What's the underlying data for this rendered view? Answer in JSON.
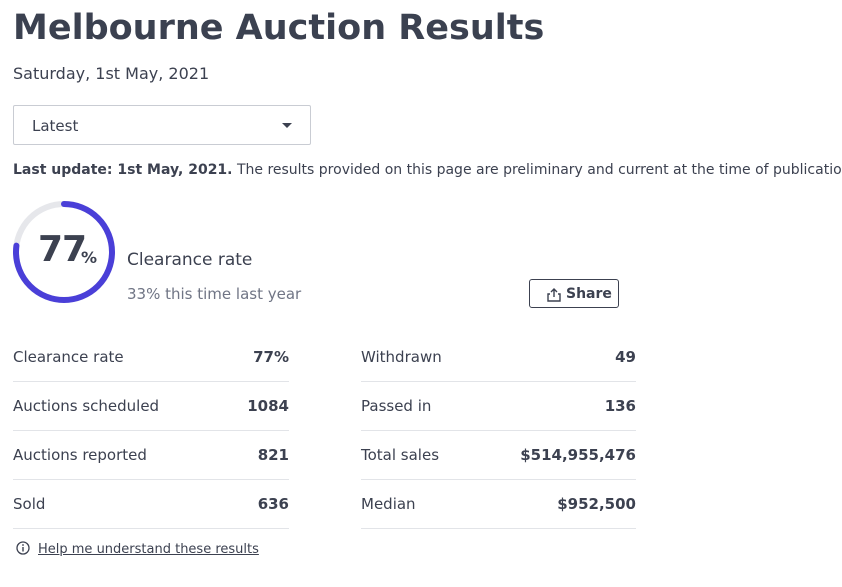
{
  "header": {
    "title": "Melbourne Auction Results",
    "date": "Saturday, 1st May, 2021"
  },
  "dropdown": {
    "selected": "Latest"
  },
  "update": {
    "label": "Last update: 1st May, 2021.",
    "text": "The results provided on this page are preliminary and current at the time of publication."
  },
  "gauge": {
    "value": 77,
    "unit": "%",
    "label": "Clearance rate",
    "comparison": "33% this time last year"
  },
  "share": {
    "label": "Share"
  },
  "stats": {
    "left": [
      [
        "Clearance rate",
        "77%"
      ],
      [
        "Auctions scheduled",
        "1084"
      ],
      [
        "Auctions reported",
        "821"
      ],
      [
        "Sold",
        "636"
      ]
    ],
    "right": [
      [
        "Withdrawn",
        "49"
      ],
      [
        "Passed in",
        "136"
      ],
      [
        "Total sales",
        "$514,955,476"
      ],
      [
        "Median",
        "$952,500"
      ]
    ]
  },
  "help": {
    "label": "Help me understand these results"
  }
}
